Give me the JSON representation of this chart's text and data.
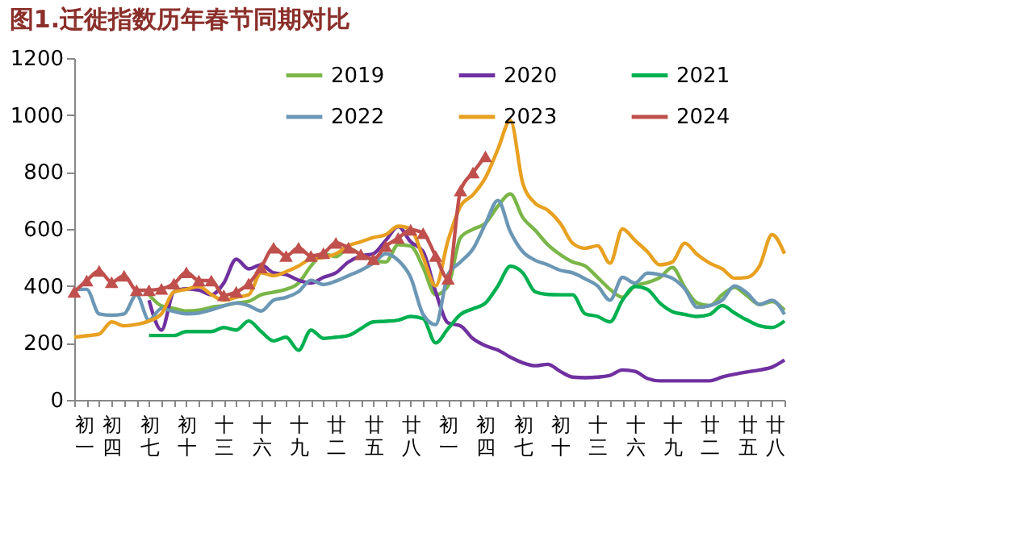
{
  "chart_data": {
    "type": "line",
    "title": "图1.迁徙指数历年春节同期对比",
    "categories": [
      "初一",
      null,
      null,
      "初四",
      null,
      null,
      "初七",
      null,
      null,
      "初十",
      null,
      null,
      "十三",
      null,
      null,
      "十六",
      null,
      null,
      "十九",
      null,
      null,
      "廿二",
      null,
      null,
      "廿五",
      null,
      null,
      "廿八",
      null,
      null,
      "初一",
      null,
      null,
      "初四",
      null,
      null,
      "初七",
      null,
      null,
      "初十",
      null,
      null,
      "十三",
      null,
      null,
      "十六",
      null,
      null,
      "十九",
      null,
      null,
      "廿二",
      null,
      null,
      "廿五",
      null,
      null,
      "廿八"
    ],
    "series": [
      {
        "name": "2019",
        "color": "#7ab648",
        "values": [
          null,
          null,
          null,
          null,
          null,
          null,
          369,
          330,
          321,
          312,
          315,
          325,
          331,
          340,
          346,
          369,
          378,
          388,
          410,
          470,
          513,
          503,
          532,
          510,
          490,
          484,
          545,
          540,
          465,
          369,
          400,
          570,
          599,
          620,
          680,
          723,
          640,
          595,
          545,
          510,
          484,
          470,
          430,
          388,
          360,
          400,
          412,
          430,
          465,
          395,
          340,
          331,
          369,
          395,
          365,
          335,
          345,
          315
        ]
      },
      {
        "name": "2020",
        "color": "#7030a0",
        "values": [
          null,
          null,
          null,
          null,
          null,
          null,
          350,
          245,
          379,
          390,
          385,
          369,
          410,
          494,
          460,
          474,
          446,
          440,
          420,
          410,
          430,
          446,
          484,
          505,
          513,
          560,
          608,
          555,
          520,
          380,
          270,
          260,
          215,
          190,
          175,
          150,
          130,
          120,
          125,
          100,
          80,
          78,
          80,
          86,
          105,
          100,
          75,
          67,
          67,
          67,
          67,
          67,
          80,
          90,
          98,
          105,
          115,
          140
        ]
      },
      {
        "name": "2021",
        "color": "#00b050",
        "values": [
          null,
          null,
          null,
          null,
          null,
          null,
          226,
          226,
          226,
          240,
          240,
          240,
          254,
          245,
          277,
          240,
          207,
          220,
          174,
          245,
          216,
          220,
          226,
          250,
          274,
          276,
          280,
          293,
          285,
          200,
          250,
          300,
          320,
          340,
          400,
          469,
          446,
          379,
          370,
          369,
          369,
          302,
          293,
          274,
          350,
          398,
          388,
          340,
          310,
          300,
          293,
          300,
          331,
          305,
          280,
          260,
          254,
          277
        ]
      },
      {
        "name": "2022",
        "color": "#6b97b5",
        "values": [
          388,
          388,
          302,
          297,
          302,
          369,
          280,
          321,
          310,
          302,
          305,
          316,
          330,
          340,
          331,
          312,
          350,
          360,
          380,
          420,
          405,
          417,
          436,
          455,
          480,
          513,
          490,
          430,
          300,
          264,
          440,
          484,
          530,
          618,
          700,
          590,
          520,
          490,
          474,
          455,
          446,
          425,
          400,
          350,
          430,
          410,
          445,
          440,
          427,
          390,
          325,
          331,
          350,
          400,
          375,
          335,
          350,
          300
        ]
      },
      {
        "name": "2023",
        "color": "#e8a020",
        "values": [
          220,
          225,
          231,
          274,
          260,
          265,
          277,
          302,
          379,
          388,
          398,
          370,
          350,
          360,
          369,
          446,
          436,
          450,
          470,
          495,
          500,
          513,
          541,
          555,
          570,
          580,
          610,
          600,
          500,
          400,
          560,
          680,
          720,
          780,
          880,
          981,
          760,
          690,
          666,
          620,
          550,
          532,
          541,
          480,
          600,
          560,
          520,
          474,
          484,
          550,
          510,
          480,
          460,
          427,
          430,
          470,
          580,
          513
        ]
      },
      {
        "name": "2024",
        "color": "#c0504d",
        "marker": "triangle",
        "values": [
          379,
          419,
          453,
          413,
          436,
          385,
          385,
          390,
          408,
          448,
          419,
          419,
          367,
          379,
          408,
          465,
          534,
          505,
          534,
          505,
          515,
          551,
          534,
          511,
          494,
          540,
          568,
          597,
          585,
          505,
          425,
          735,
          798,
          855,
          null,
          null,
          null,
          null,
          null,
          null,
          null,
          null,
          null,
          null,
          null,
          null,
          null,
          null,
          null,
          null,
          null,
          null,
          null,
          null,
          null,
          null,
          null,
          null
        ]
      }
    ],
    "ylim": [
      0,
      1200
    ],
    "yticks": [
      0,
      200,
      400,
      600,
      800,
      1000,
      1200
    ],
    "grid": false,
    "legend": "top",
    "line_style": "solid"
  }
}
